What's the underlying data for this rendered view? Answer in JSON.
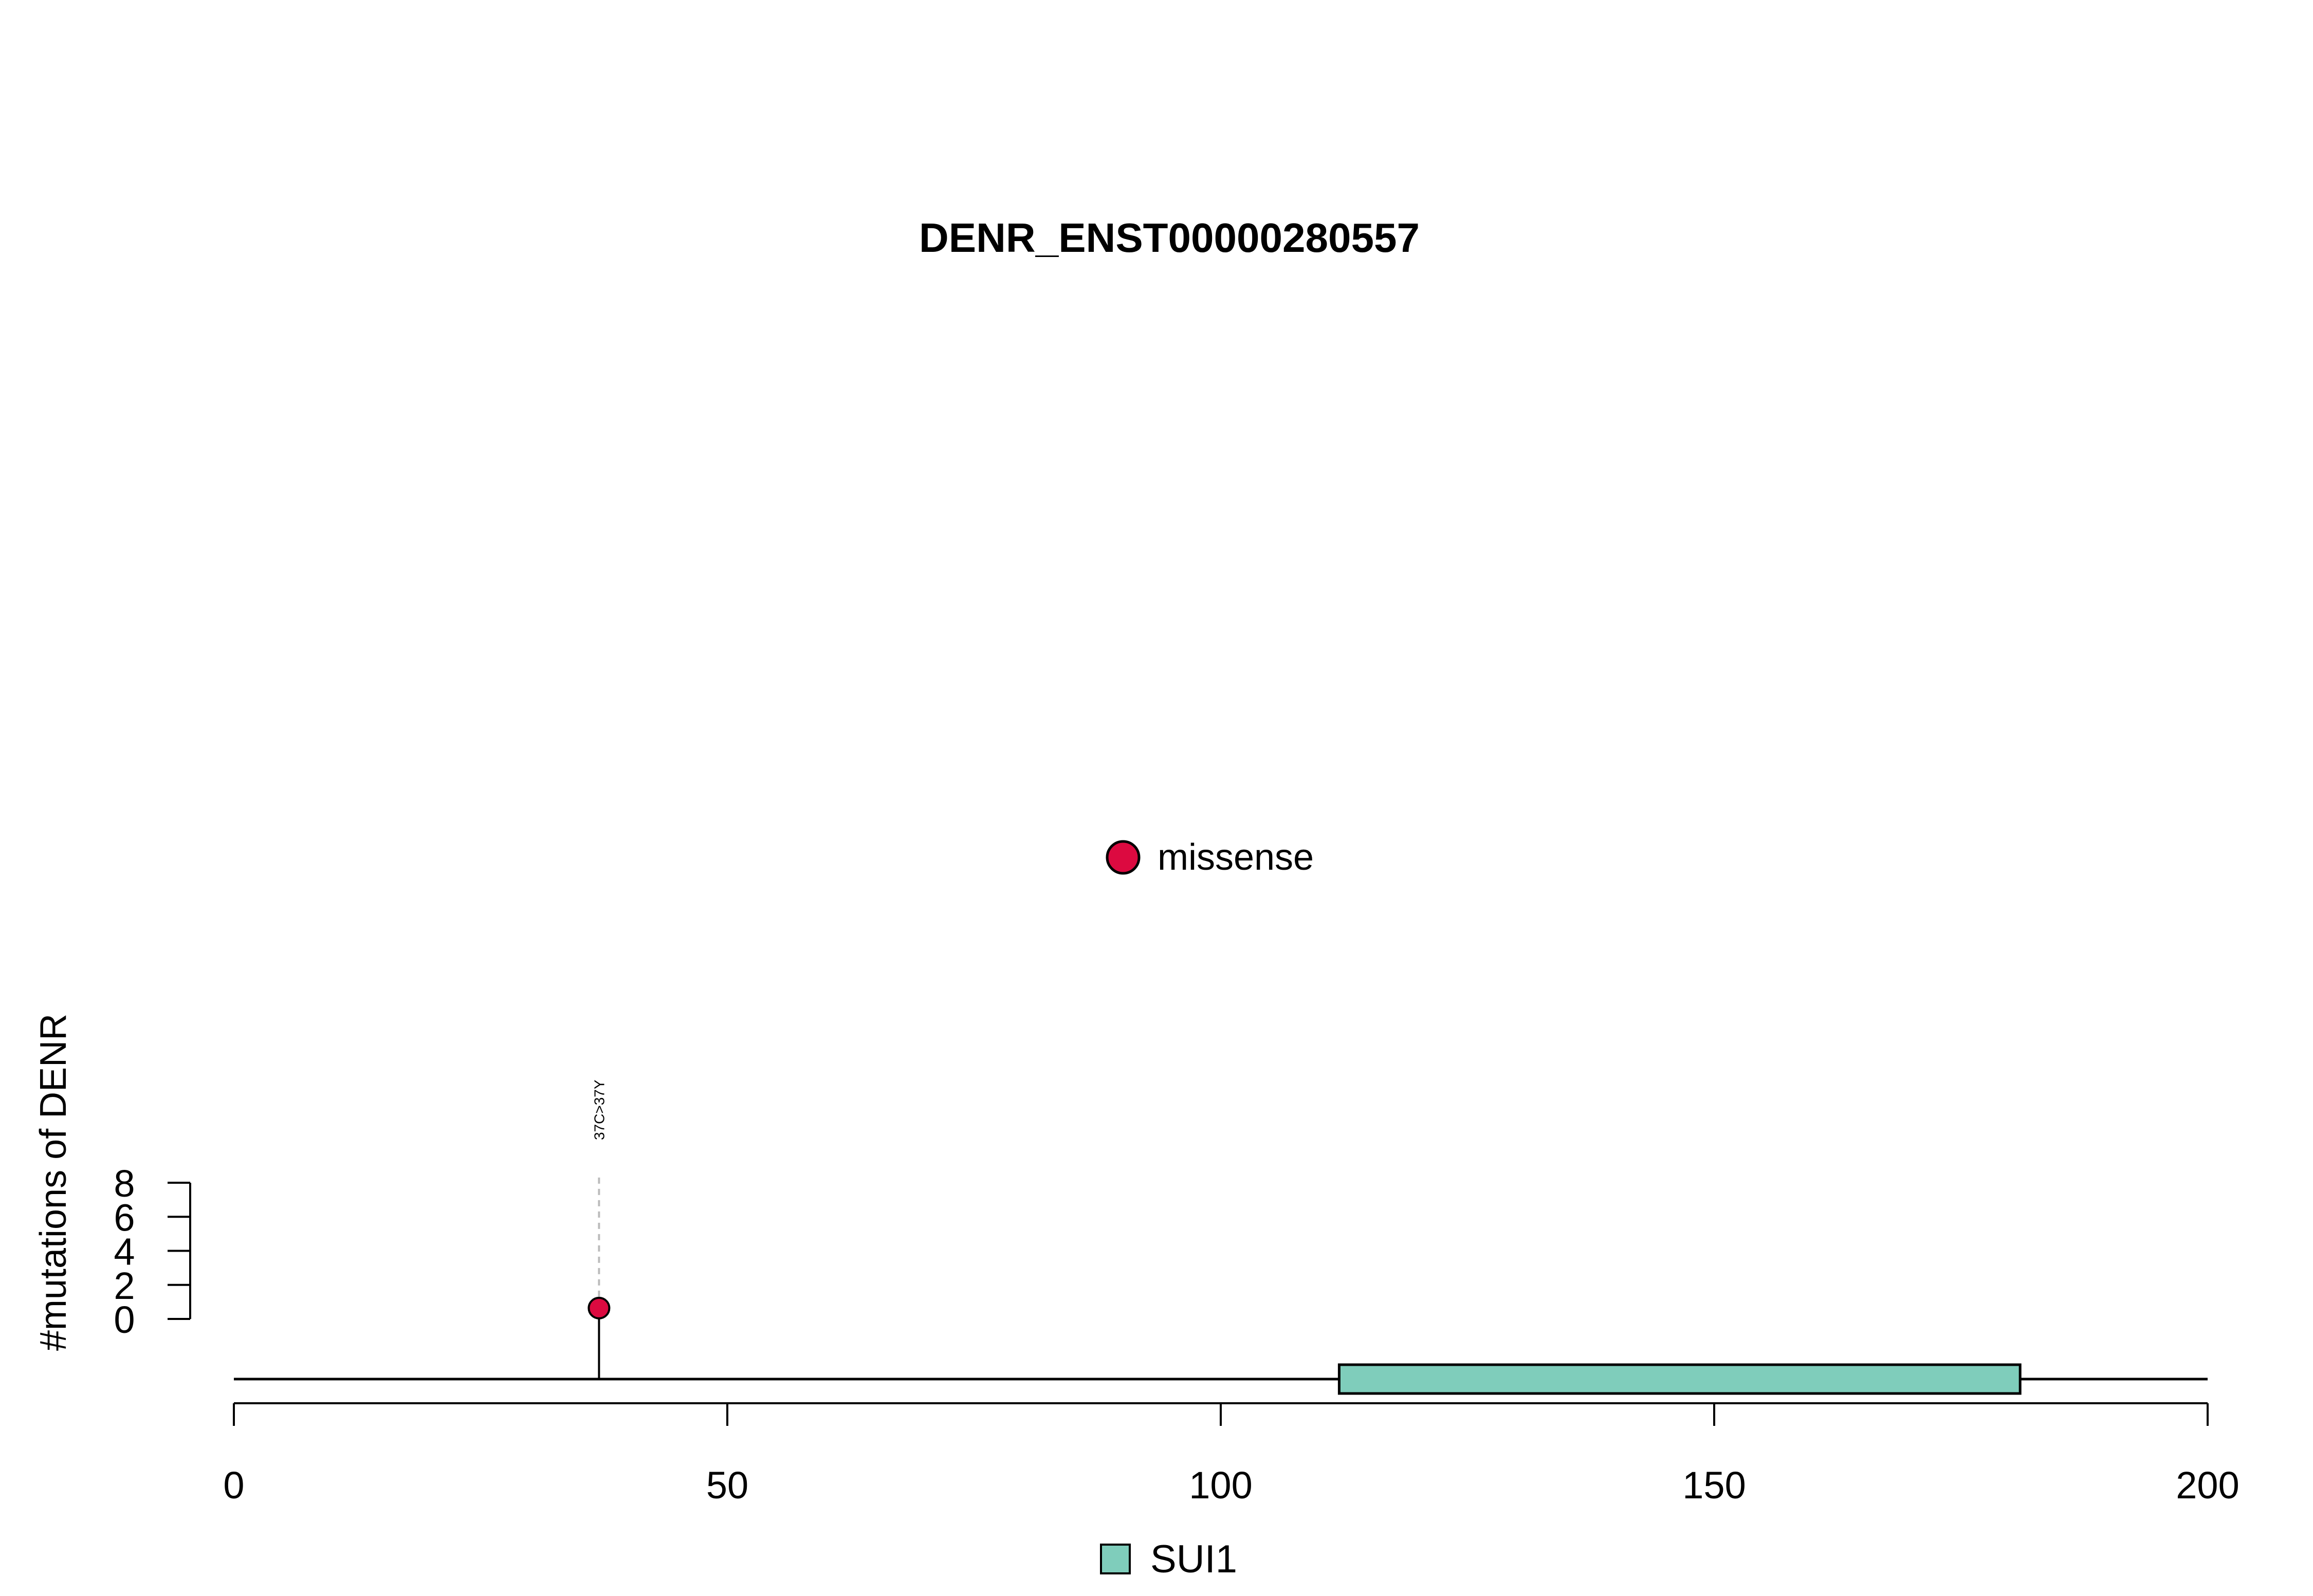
{
  "chart_data": {
    "type": "lollipop",
    "title": "DENR_ENST00000280557",
    "ylabel": "#mutations of DENR",
    "xlabel": "",
    "xlim": [
      0,
      200
    ],
    "x_ticks": [
      0,
      50,
      100,
      150,
      200
    ],
    "ylim": [
      0,
      8
    ],
    "y_ticks": [
      0,
      2,
      4,
      6,
      8
    ],
    "mutations": [
      {
        "position": 37,
        "count": 1,
        "label": "37C>37Y",
        "type": "missense"
      }
    ],
    "mutation_types": [
      {
        "name": "missense",
        "color": "#DC0A40"
      }
    ],
    "protein_length": 200,
    "domains": [
      {
        "name": "SUI1",
        "start": 112,
        "end": 181,
        "color": "#7FCDBB"
      }
    ],
    "legend_mutation_position": "center",
    "legend_domain_position": "bottom-center"
  }
}
